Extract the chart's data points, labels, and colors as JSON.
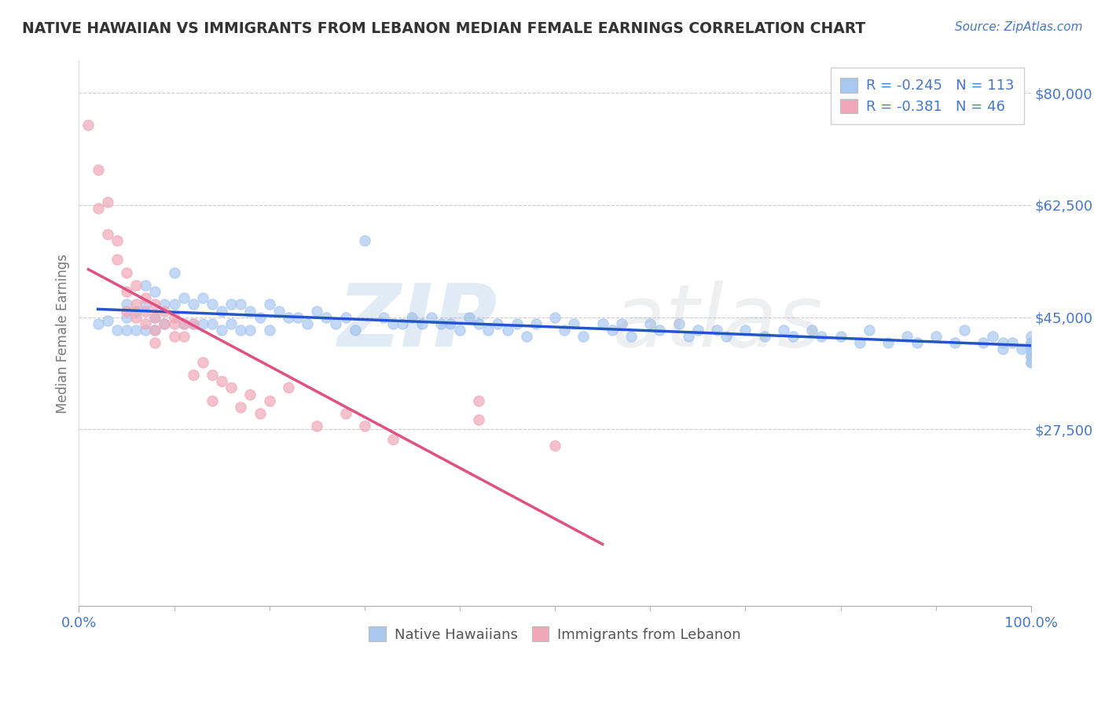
{
  "title": "NATIVE HAWAIIAN VS IMMIGRANTS FROM LEBANON MEDIAN FEMALE EARNINGS CORRELATION CHART",
  "source_text": "Source: ZipAtlas.com",
  "ylabel": "Median Female Earnings",
  "xlim": [
    0.0,
    1.0
  ],
  "ylim": [
    0,
    85000
  ],
  "yticks": [
    0,
    27500,
    45000,
    62500,
    80000
  ],
  "ytick_labels": [
    "",
    "$27,500",
    "$45,000",
    "$62,500",
    "$80,000"
  ],
  "xtick_labels": [
    "0.0%",
    "100.0%"
  ],
  "legend_r1": "R = -0.245",
  "legend_n1": "N = 113",
  "legend_r2": "R = -0.381",
  "legend_n2": "N = 46",
  "series1_name": "Native Hawaiians",
  "series2_name": "Immigrants from Lebanon",
  "series1_color": "#a8c8f0",
  "series2_color": "#f0a8b8",
  "series1_line_color": "#2255cc",
  "series2_line_color": "#e05080",
  "watermark_zip_color": "#8ab0d8",
  "watermark_atlas_color": "#b0b8c0",
  "title_color": "#333333",
  "axis_label_color": "#4477cc",
  "ylabel_color": "#777777",
  "background_color": "#ffffff",
  "grid_color": "#cccccc",
  "series1_r": -0.245,
  "series1_n": 113,
  "series2_r": -0.381,
  "series2_n": 46,
  "blue_scatter_x": [
    0.02,
    0.03,
    0.04,
    0.05,
    0.05,
    0.05,
    0.06,
    0.06,
    0.07,
    0.07,
    0.07,
    0.08,
    0.08,
    0.08,
    0.09,
    0.09,
    0.1,
    0.1,
    0.11,
    0.11,
    0.12,
    0.12,
    0.13,
    0.13,
    0.14,
    0.14,
    0.15,
    0.15,
    0.16,
    0.16,
    0.17,
    0.17,
    0.18,
    0.18,
    0.19,
    0.2,
    0.2,
    0.21,
    0.22,
    0.23,
    0.24,
    0.25,
    0.26,
    0.27,
    0.28,
    0.29,
    0.3,
    0.32,
    0.33,
    0.34,
    0.35,
    0.36,
    0.37,
    0.38,
    0.39,
    0.4,
    0.41,
    0.42,
    0.43,
    0.44,
    0.45,
    0.46,
    0.47,
    0.48,
    0.5,
    0.51,
    0.52,
    0.53,
    0.55,
    0.56,
    0.57,
    0.58,
    0.6,
    0.61,
    0.63,
    0.64,
    0.65,
    0.67,
    0.68,
    0.7,
    0.72,
    0.74,
    0.75,
    0.77,
    0.78,
    0.8,
    0.82,
    0.83,
    0.85,
    0.87,
    0.88,
    0.9,
    0.92,
    0.93,
    0.95,
    0.96,
    0.97,
    0.97,
    0.98,
    0.99,
    1.0,
    1.0,
    1.0,
    1.0,
    1.0,
    1.0,
    1.0,
    1.0,
    1.0,
    1.0,
    1.0,
    1.0,
    1.0
  ],
  "blue_scatter_y": [
    44000,
    44500,
    43000,
    47000,
    45000,
    43000,
    46000,
    43000,
    50000,
    47000,
    43000,
    49000,
    45000,
    43000,
    47000,
    44000,
    52000,
    47000,
    48000,
    44000,
    47000,
    44000,
    48000,
    44000,
    47000,
    44000,
    46000,
    43000,
    47000,
    44000,
    47000,
    43000,
    46000,
    43000,
    45000,
    47000,
    43000,
    46000,
    45000,
    45000,
    44000,
    46000,
    45000,
    44000,
    45000,
    43000,
    57000,
    45000,
    44000,
    44000,
    45000,
    44000,
    45000,
    44000,
    44000,
    43000,
    45000,
    44000,
    43000,
    44000,
    43000,
    44000,
    42000,
    44000,
    45000,
    43000,
    44000,
    42000,
    44000,
    43000,
    44000,
    42000,
    44000,
    43000,
    44000,
    42000,
    43000,
    43000,
    42000,
    43000,
    42000,
    43000,
    42000,
    43000,
    42000,
    42000,
    41000,
    43000,
    41000,
    42000,
    41000,
    42000,
    41000,
    43000,
    41000,
    42000,
    41000,
    40000,
    41000,
    40000,
    42000,
    41000,
    40000,
    41000,
    40000,
    39000,
    41000,
    40000,
    39000,
    40000,
    39000,
    38000,
    38000
  ],
  "pink_scatter_x": [
    0.01,
    0.02,
    0.02,
    0.03,
    0.03,
    0.04,
    0.04,
    0.05,
    0.05,
    0.05,
    0.06,
    0.06,
    0.06,
    0.07,
    0.07,
    0.07,
    0.08,
    0.08,
    0.08,
    0.08,
    0.09,
    0.09,
    0.1,
    0.1,
    0.1,
    0.11,
    0.11,
    0.12,
    0.12,
    0.13,
    0.14,
    0.14,
    0.15,
    0.16,
    0.17,
    0.18,
    0.19,
    0.2,
    0.22,
    0.25,
    0.28,
    0.3,
    0.33,
    0.42,
    0.42,
    0.5
  ],
  "pink_scatter_y": [
    75000,
    68000,
    62000,
    63000,
    58000,
    57000,
    54000,
    52000,
    49000,
    46000,
    50000,
    47000,
    45000,
    48000,
    46000,
    44000,
    47000,
    45000,
    43000,
    41000,
    46000,
    44000,
    45000,
    44000,
    42000,
    44000,
    42000,
    44000,
    36000,
    38000,
    36000,
    32000,
    35000,
    34000,
    31000,
    33000,
    30000,
    32000,
    34000,
    28000,
    30000,
    28000,
    26000,
    32000,
    29000,
    25000
  ],
  "pink_trendline_x_start": 0.01,
  "pink_trendline_x_solid_end": 0.42,
  "pink_trendline_x_dashed_end": 0.55,
  "blue_trendline_x_start": 0.02,
  "blue_trendline_x_end": 1.0
}
